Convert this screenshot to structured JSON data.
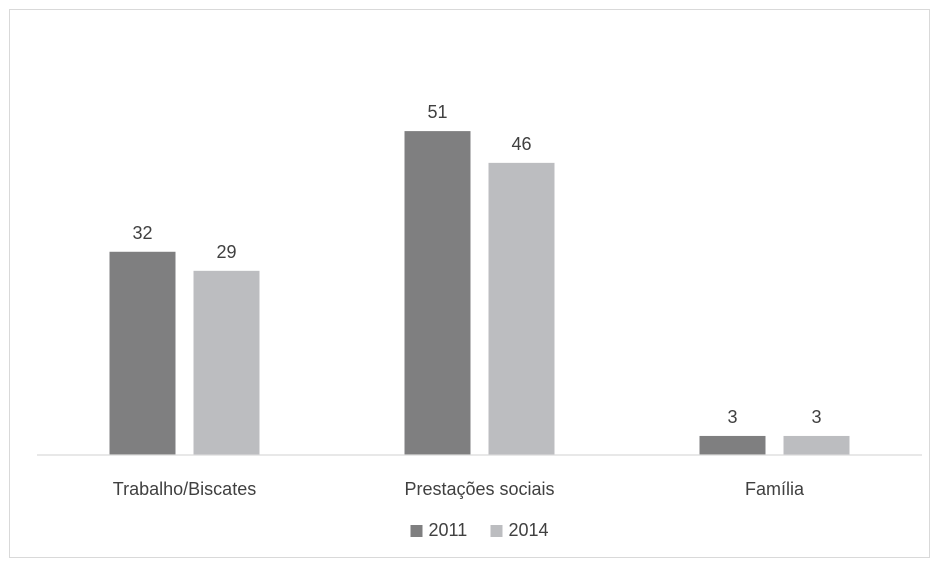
{
  "chart_data": {
    "type": "bar",
    "title": "",
    "xlabel": "",
    "ylabel": "",
    "categories": [
      "Trabalho/Biscates",
      "Prestações sociais",
      "Família"
    ],
    "series": [
      {
        "name": "2011",
        "values": [
          32,
          51,
          3
        ],
        "color": "#7f7f80"
      },
      {
        "name": "2014",
        "values": [
          29,
          46,
          3
        ],
        "color": "#bcbdc0"
      }
    ],
    "ylim": [
      0,
      57
    ],
    "grid": false,
    "data_labels": true,
    "legend_position": "bottom"
  }
}
